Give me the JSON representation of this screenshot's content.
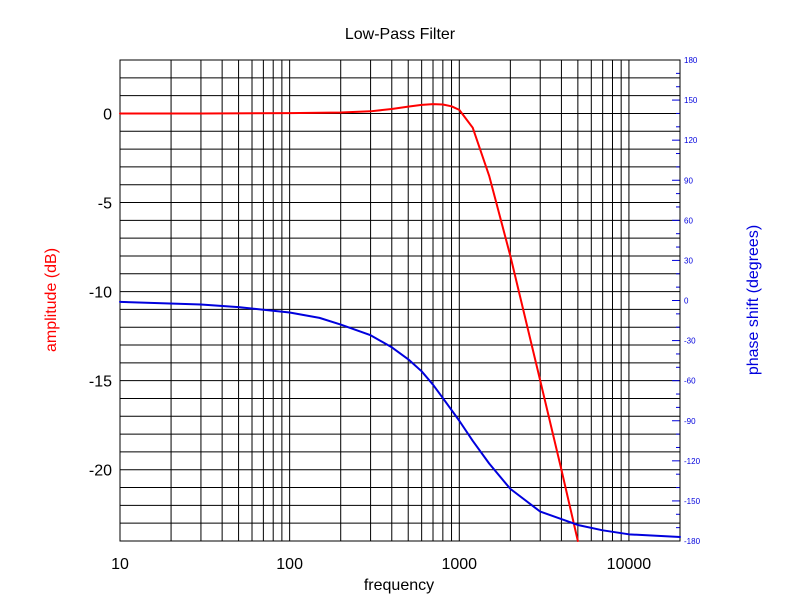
{
  "chart_data": {
    "type": "line",
    "title": "Low-Pass Filter",
    "xlabel": "frequency",
    "ylabel_left": "amplitude (dB)",
    "ylabel_right": "phase shift (degrees)",
    "x_scale": "log",
    "xlim": [
      10,
      20000
    ],
    "ylim_left": [
      -24,
      3
    ],
    "ylim_right": [
      -180,
      180
    ],
    "x_ticks": [
      {
        "value": 10,
        "label": "10"
      },
      {
        "value": 100,
        "label": "100"
      },
      {
        "value": 1000,
        "label": "1000"
      },
      {
        "value": 10000,
        "label": "10000"
      }
    ],
    "y_left_ticks": [
      {
        "value": 0,
        "label": "0"
      },
      {
        "value": -5,
        "label": "-5"
      },
      {
        "value": -10,
        "label": "-10"
      },
      {
        "value": -15,
        "label": "-15"
      },
      {
        "value": -20,
        "label": "-20"
      }
    ],
    "y_right_ticks": [
      {
        "value": 180,
        "label": "180"
      },
      {
        "value": 150,
        "label": "150"
      },
      {
        "value": 120,
        "label": "120"
      },
      {
        "value": 90,
        "label": "90"
      },
      {
        "value": 60,
        "label": "60"
      },
      {
        "value": 30,
        "label": "30"
      },
      {
        "value": 0,
        "label": "0"
      },
      {
        "value": -30,
        "label": "-30"
      },
      {
        "value": -60,
        "label": "-60"
      },
      {
        "value": -90,
        "label": "-90"
      },
      {
        "value": -120,
        "label": "-120"
      },
      {
        "value": -150,
        "label": "-150"
      },
      {
        "value": -180,
        "label": "-180"
      }
    ],
    "grid": true,
    "colors": {
      "amplitude": "#ff0000",
      "phase": "#0000dd",
      "grid": "#000000",
      "text": "#000000"
    },
    "series": [
      {
        "axis": "left",
        "values": [
          {
            "x": 10,
            "y": 0.0
          },
          {
            "x": 30,
            "y": 0.0
          },
          {
            "x": 100,
            "y": 0.02
          },
          {
            "x": 200,
            "y": 0.05
          },
          {
            "x": 300,
            "y": 0.12
          },
          {
            "x": 400,
            "y": 0.25
          },
          {
            "x": 500,
            "y": 0.38
          },
          {
            "x": 600,
            "y": 0.48
          },
          {
            "x": 700,
            "y": 0.52
          },
          {
            "x": 800,
            "y": 0.5
          },
          {
            "x": 900,
            "y": 0.4
          },
          {
            "x": 1000,
            "y": 0.2
          },
          {
            "x": 1200,
            "y": -0.8
          },
          {
            "x": 1500,
            "y": -3.5
          },
          {
            "x": 2000,
            "y": -8.0
          },
          {
            "x": 3000,
            "y": -15.0
          },
          {
            "x": 4000,
            "y": -20.0
          },
          {
            "x": 5000,
            "y": -24.0
          }
        ]
      },
      {
        "axis": "right",
        "values": [
          {
            "x": 10,
            "y": -1
          },
          {
            "x": 30,
            "y": -3
          },
          {
            "x": 50,
            "y": -5
          },
          {
            "x": 100,
            "y": -9
          },
          {
            "x": 150,
            "y": -13
          },
          {
            "x": 200,
            "y": -18
          },
          {
            "x": 300,
            "y": -26
          },
          {
            "x": 400,
            "y": -35
          },
          {
            "x": 500,
            "y": -44
          },
          {
            "x": 600,
            "y": -53
          },
          {
            "x": 700,
            "y": -63
          },
          {
            "x": 800,
            "y": -73
          },
          {
            "x": 1000,
            "y": -90
          },
          {
            "x": 1200,
            "y": -105
          },
          {
            "x": 1500,
            "y": -122
          },
          {
            "x": 2000,
            "y": -141
          },
          {
            "x": 3000,
            "y": -158
          },
          {
            "x": 5000,
            "y": -168
          },
          {
            "x": 7000,
            "y": -172
          },
          {
            "x": 10000,
            "y": -175
          },
          {
            "x": 20000,
            "y": -177
          }
        ]
      }
    ]
  }
}
